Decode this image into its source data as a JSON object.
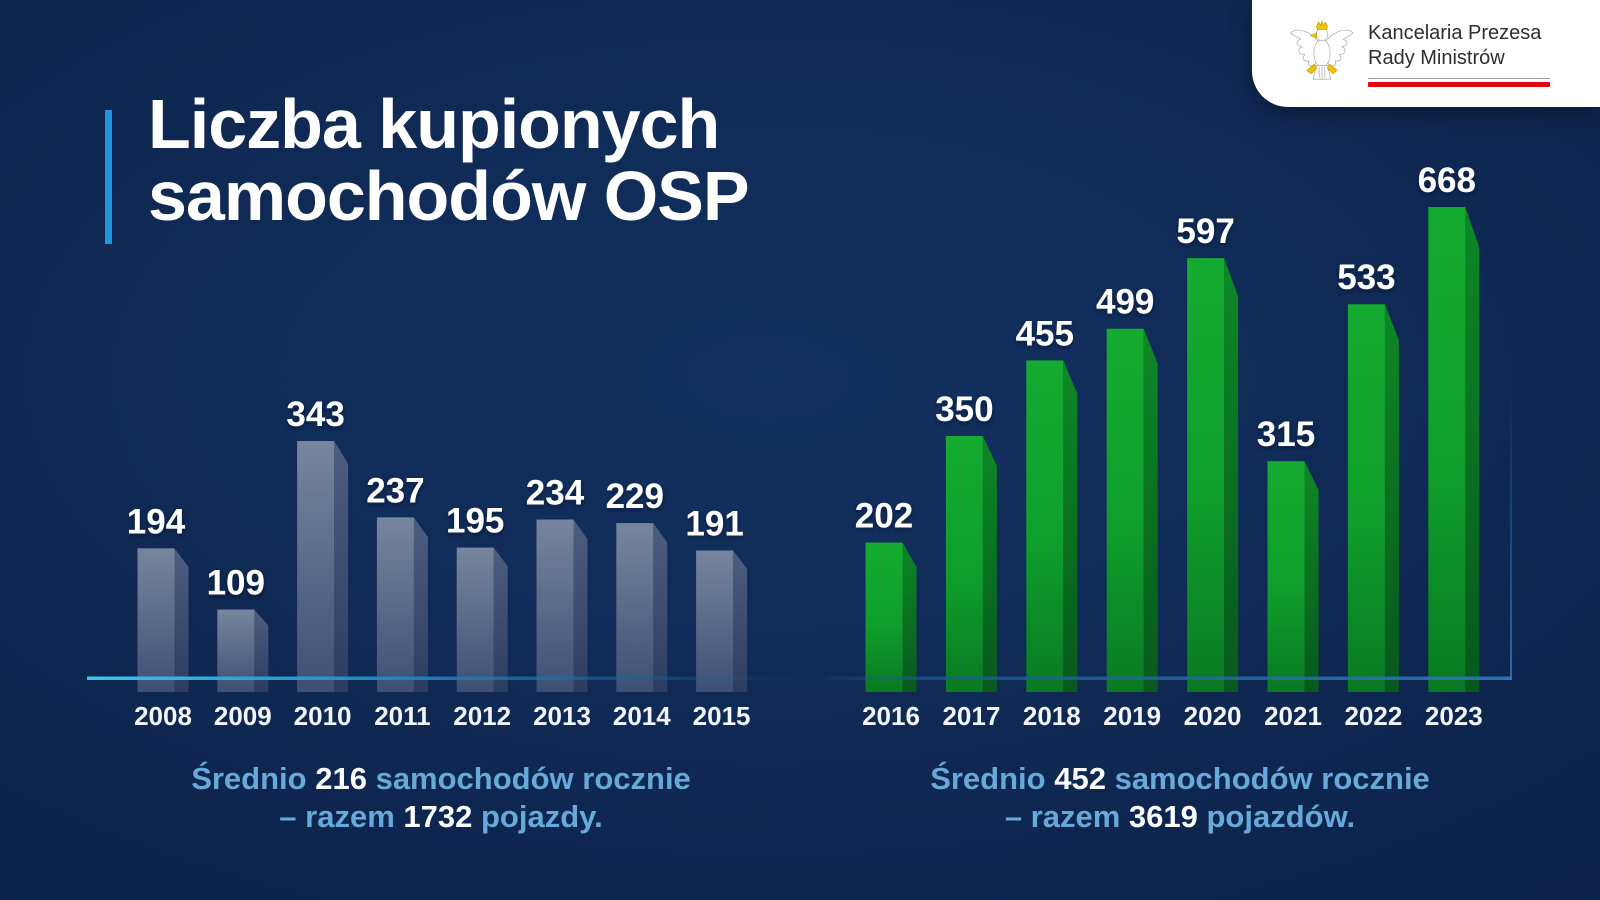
{
  "page": {
    "background_color": "#0e2750",
    "accent_bar_color": "#2095d8"
  },
  "title": {
    "line1": "Liczba kupionych",
    "line2": "samochodów OSP"
  },
  "logo": {
    "org_line1": "Kancelaria Prezesa",
    "org_line2": "Rady Ministrów",
    "eagle_icon": "polish-eagle",
    "divider_color": "#97989a",
    "red_line_color": "#e30613"
  },
  "chart_data": [
    {
      "type": "bar",
      "period_label": "2008-2015",
      "categories": [
        "2008",
        "2009",
        "2010",
        "2011",
        "2012",
        "2013",
        "2014",
        "2015"
      ],
      "values": [
        194,
        109,
        343,
        237,
        195,
        234,
        229,
        191
      ],
      "value_labels_position": "above bars",
      "ylim": [
        0,
        700
      ],
      "grid": false,
      "legend": "none",
      "bar_style": "3d-extruded",
      "colors": {
        "front": [
          [
            "0%",
            "#76869f"
          ],
          [
            "45%",
            "#5c6e8c"
          ],
          [
            "100%",
            "#3d5074"
          ]
        ],
        "side": [
          [
            "0%",
            "#4d5d7e"
          ],
          [
            "100%",
            "#2c3d60"
          ]
        ],
        "baseline": [
          [
            "0%",
            "#3fc4f0",
            "1"
          ],
          [
            "45%",
            "#1f86c0",
            "0.95"
          ],
          [
            "80%",
            "#156099",
            "0.5"
          ],
          [
            "100%",
            "#156099",
            "0"
          ]
        ],
        "value_label": "#ffffff",
        "year_label": "#f2f5fa"
      },
      "caption": {
        "line1_prefix": "Średnio",
        "average": "216",
        "line1_suffix": "samochodów rocznie",
        "line2_prefix": "– razem",
        "total": "1732",
        "line2_suffix": "pojazdy."
      }
    },
    {
      "type": "bar",
      "period_label": "2016-2023",
      "categories": [
        "2016",
        "2017",
        "2018",
        "2019",
        "2020",
        "2021",
        "2022",
        "2023"
      ],
      "values": [
        202,
        350,
        455,
        499,
        597,
        315,
        533,
        668
      ],
      "value_labels_position": "above bars",
      "ylim": [
        0,
        700
      ],
      "grid": false,
      "legend": "none",
      "bar_style": "3d-extruded",
      "colors": {
        "front": [
          [
            "0%",
            "#15ab31"
          ],
          [
            "55%",
            "#0f9e2b"
          ],
          [
            "100%",
            "#097a22"
          ]
        ],
        "side": [
          [
            "0%",
            "#0d8826"
          ],
          [
            "100%",
            "#07591c"
          ]
        ],
        "baseline": [
          [
            "0%",
            "#1b5a94",
            "0.15"
          ],
          [
            "15%",
            "#1b5a94",
            "0.75"
          ],
          [
            "100%",
            "#2a77b8",
            "0.95"
          ]
        ],
        "value_label": "#ffffff",
        "year_label": "#f2f5fa"
      },
      "caption": {
        "line1_prefix": "Średnio",
        "average": "452",
        "line1_suffix": "samochodów rocznie",
        "line2_prefix": "– razem",
        "total": "3619",
        "line2_suffix": "pojazdów."
      }
    }
  ]
}
